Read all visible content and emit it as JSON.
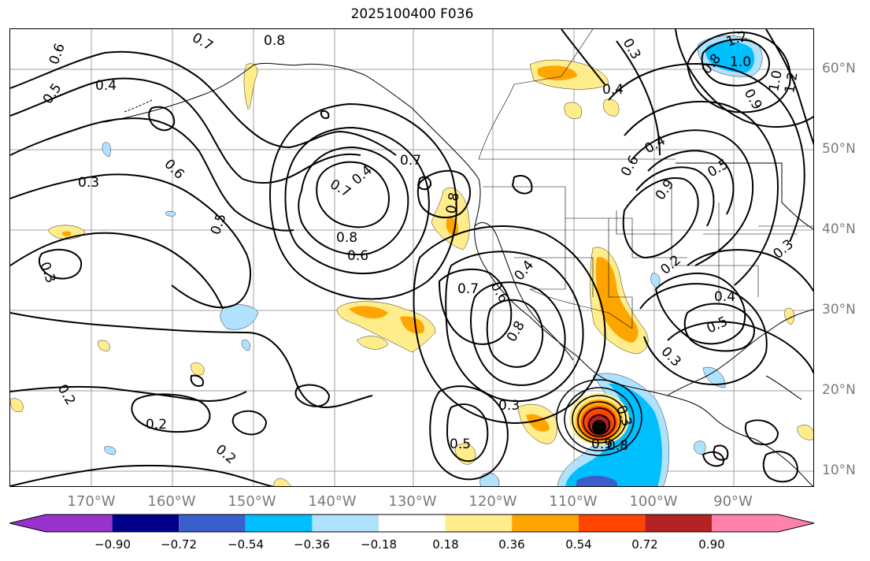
{
  "title": "2025100400 F036",
  "longitude_labels": [
    "170°W",
    "160°W",
    "150°W",
    "140°W",
    "130°W",
    "120°W",
    "110°W",
    "100°W",
    "90°W"
  ],
  "latitude_labels": [
    "60°N",
    "50°N",
    "40°N",
    "30°N",
    "20°N",
    "10°N"
  ],
  "contour_labels": [
    {
      "text": "0.7"
    },
    {
      "text": "0.6"
    },
    {
      "text": "0.5"
    },
    {
      "text": "0.4"
    },
    {
      "text": "0.8"
    },
    {
      "text": "0.3"
    },
    {
      "text": "0.6"
    },
    {
      "text": "0.5"
    },
    {
      "text": "0.7"
    },
    {
      "text": "0.4"
    },
    {
      "text": "0.7"
    },
    {
      "text": "0.8"
    },
    {
      "text": "0.6"
    },
    {
      "text": "0.3"
    },
    {
      "text": "0.8"
    },
    {
      "text": "0.7"
    },
    {
      "text": "0.6"
    },
    {
      "text": "0.4"
    },
    {
      "text": "0.8"
    },
    {
      "text": "0.3"
    },
    {
      "text": "0.4"
    },
    {
      "text": "0.4"
    },
    {
      "text": "0.6"
    },
    {
      "text": "0.9"
    },
    {
      "text": "0.5"
    },
    {
      "text": "0.2"
    },
    {
      "text": "0.4"
    },
    {
      "text": "0.5"
    },
    {
      "text": "0.3"
    },
    {
      "text": "1.2"
    },
    {
      "text": "1.0"
    },
    {
      "text": "0.8"
    },
    {
      "text": "0.9"
    },
    {
      "text": "1.0"
    },
    {
      "text": "1.2"
    },
    {
      "text": "0.2"
    },
    {
      "text": "0.2"
    },
    {
      "text": "0.2"
    },
    {
      "text": "0.3"
    },
    {
      "text": "0.5"
    },
    {
      "text": "0.3"
    },
    {
      "text": "0.9"
    },
    {
      "text": "0.8"
    },
    {
      "text": "0.3"
    }
  ],
  "colorbar": {
    "ticks": [
      "−0.90",
      "−0.72",
      "−0.54",
      "−0.36",
      "−0.18",
      "0.18",
      "0.36",
      "0.54",
      "0.72",
      "0.90"
    ],
    "colors": [
      "#9932cc",
      "#00008b",
      "#3a5fcd",
      "#00bfff",
      "#b0e2ff",
      "#ffffff",
      "#ffec8b",
      "#ffa500",
      "#ff4500",
      "#b22222",
      "#ff82ab"
    ]
  },
  "shading_colors": {
    "light_yellow": "#ffec8b",
    "orange": "#ffa500",
    "red_orange": "#ff4500",
    "dark_red": "#b22222",
    "light_blue": "#b0e2ff",
    "deep_sky_blue": "#00bfff",
    "royal_blue": "#3a5fcd",
    "black": "#000000"
  }
}
